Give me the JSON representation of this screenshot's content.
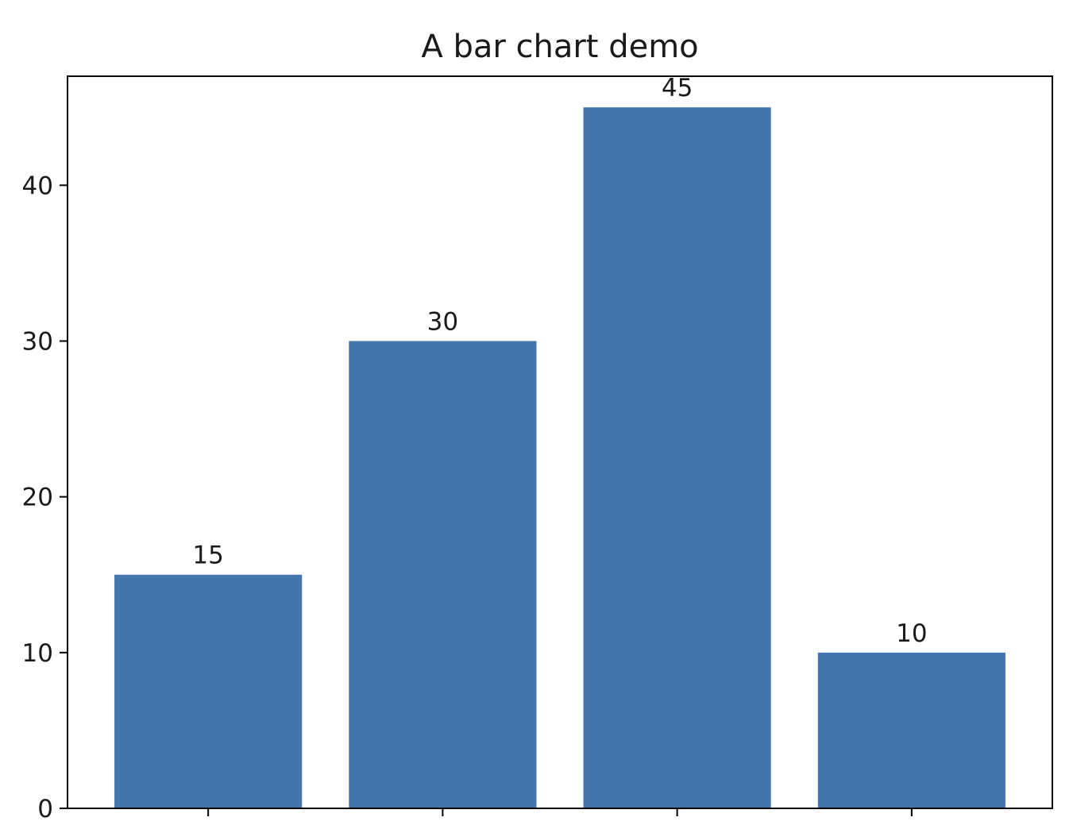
{
  "chart_data": {
    "type": "bar",
    "title": "A bar chart demo",
    "xlabel": "",
    "ylabel": "",
    "categories": [
      "",
      "",
      "",
      ""
    ],
    "values": [
      15,
      30,
      45,
      10
    ],
    "data_labels": [
      "15",
      "30",
      "45",
      "10"
    ],
    "ylim": [
      0,
      47
    ],
    "yticks": [
      0,
      10,
      20,
      30,
      40
    ],
    "ytick_labels": [
      "0",
      "10",
      "20",
      "30",
      "40"
    ],
    "grid": false,
    "bar_color": "#4575ae"
  }
}
